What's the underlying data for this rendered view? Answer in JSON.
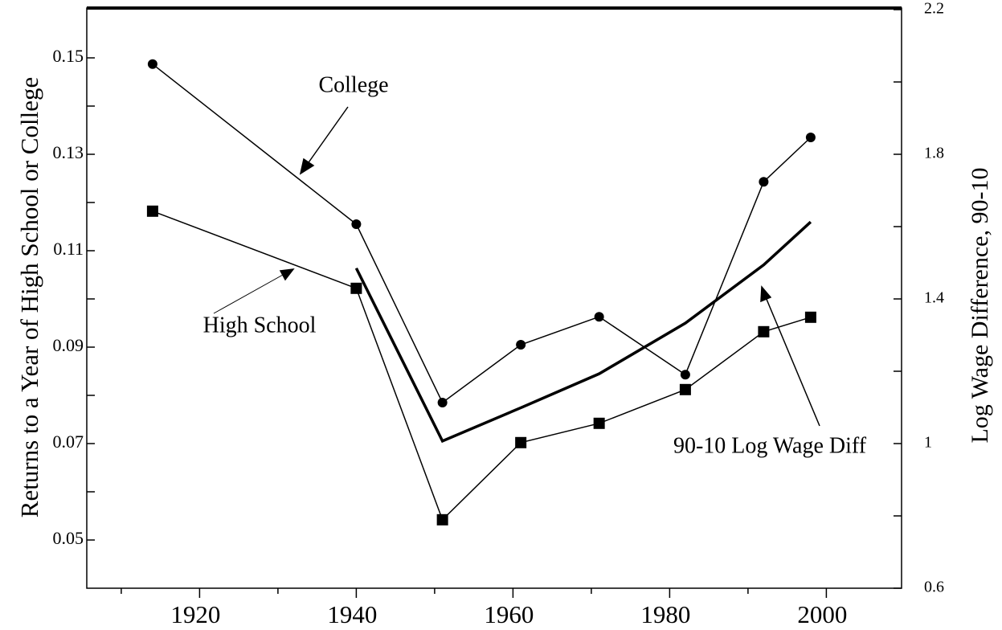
{
  "chart_data": {
    "type": "line",
    "y_label": "Returns to a Year of High School or College",
    "y2_label": "Log Wage Difference, 90-10",
    "xlim": [
      1905.6,
      2009.6
    ],
    "xticks": [
      1920,
      1940,
      1960,
      1980,
      2000
    ],
    "xminorticks": [
      1910,
      1930,
      1950,
      1970,
      1990
    ],
    "ylim": [
      0.04,
      0.16
    ],
    "yticks": [
      0.05,
      0.07,
      0.09,
      0.11,
      0.13,
      0.15
    ],
    "yminorticks": [
      0.06,
      0.08,
      0.1,
      0.12,
      0.14
    ],
    "y2lim": [
      0.6,
      2.2
    ],
    "y2ticks": [
      0.6,
      1.0,
      1.4,
      1.8,
      2.2
    ],
    "y2minorticks": [
      0.8,
      1.2,
      1.6,
      2.0
    ],
    "series": [
      {
        "name": "College",
        "color": "#000000",
        "marker": "circle",
        "width": 1.5,
        "x": [
          1914,
          1940,
          1951,
          1961,
          1971,
          1982,
          1992,
          1998
        ],
        "values": [
          0.1487,
          0.1155,
          0.0785,
          0.0905,
          0.0963,
          0.0843,
          0.1243,
          0.1335
        ]
      },
      {
        "name": "High School",
        "color": "#000000",
        "marker": "square",
        "width": 1.5,
        "x": [
          1914,
          1940,
          1951,
          1961,
          1971,
          1982,
          1992,
          1998
        ],
        "values": [
          0.1182,
          0.1022,
          0.0542,
          0.0702,
          0.0742,
          0.0812,
          0.0932,
          0.0962
        ]
      },
      {
        "name": "90-10 Log Wage Diff",
        "color": "#000000",
        "marker": "none",
        "width": 3.5,
        "axis": "y2",
        "x": [
          1940,
          1951,
          1961,
          1971,
          1982,
          1992,
          1998
        ],
        "values": [
          1.485,
          1.007,
          1.099,
          1.193,
          1.333,
          1.494,
          1.613
        ]
      }
    ]
  }
}
